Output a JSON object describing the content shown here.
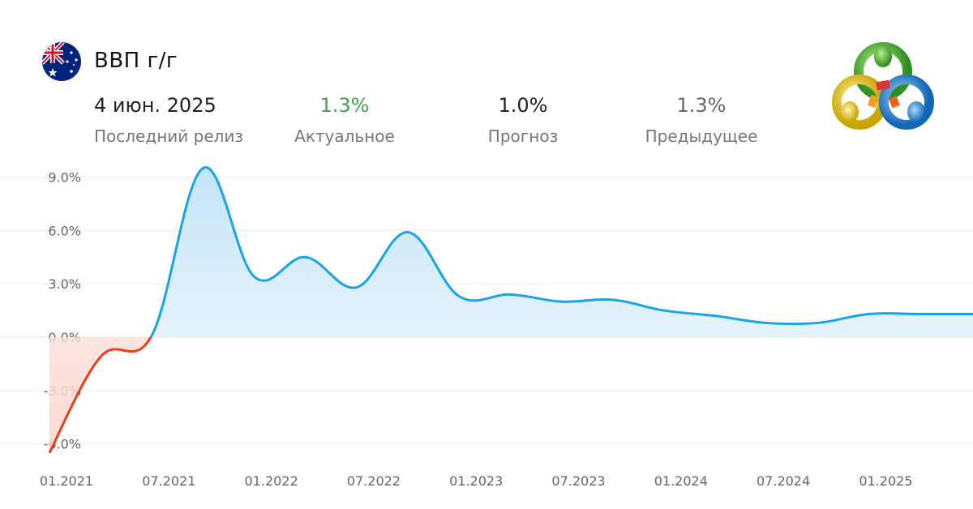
{
  "header": {
    "title": "ВВП г/г",
    "release_date": "4 июн. 2025",
    "release_label": "Последний релиз",
    "actual_value": "1.3%",
    "actual_label": "Актуальное",
    "forecast_value": "1.0%",
    "forecast_label": "Прогноз",
    "previous_value": "1.3%",
    "previous_label": "Предыдущее"
  },
  "colors": {
    "positive_line": "#1aa3e8",
    "negative_line": "#e8401c",
    "actual_text": "#3aa64a",
    "grid": "#e8eaed"
  },
  "icons": {
    "flag": "australia-flag-icon",
    "logo": "metatrader-logo-icon"
  },
  "chart_data": {
    "type": "area",
    "ylim": [
      -7.5,
      10
    ],
    "yticks": [
      9,
      6,
      3,
      0,
      -3,
      -6
    ],
    "ytick_labels": [
      "9.0%",
      "6.0%",
      "3.0%",
      "0.0%",
      "-3.0%",
      "-6.0%"
    ],
    "xtick_labels": [
      "01.2021",
      "07.2021",
      "01.2022",
      "07.2022",
      "01.2023",
      "07.2023",
      "01.2024",
      "07.2024",
      "01.2025"
    ],
    "x_range": [
      "2021-01",
      "2025-10"
    ],
    "series": [
      {
        "x": [
          "2020-12",
          "2021-03",
          "2021-06",
          "2021-09",
          "2021-12",
          "2022-03",
          "2022-06",
          "2022-09",
          "2022-12",
          "2023-03",
          "2023-06",
          "2023-09",
          "2023-12",
          "2024-03",
          "2024-06",
          "2024-09",
          "2024-12",
          "2025-03",
          "2025-06"
        ],
        "values": [
          -6.5,
          -1.1,
          0.1,
          9.5,
          3.4,
          4.5,
          2.8,
          5.9,
          2.3,
          2.4,
          2.0,
          2.1,
          1.5,
          1.2,
          0.8,
          0.8,
          1.3,
          1.3,
          1.3
        ]
      }
    ]
  }
}
